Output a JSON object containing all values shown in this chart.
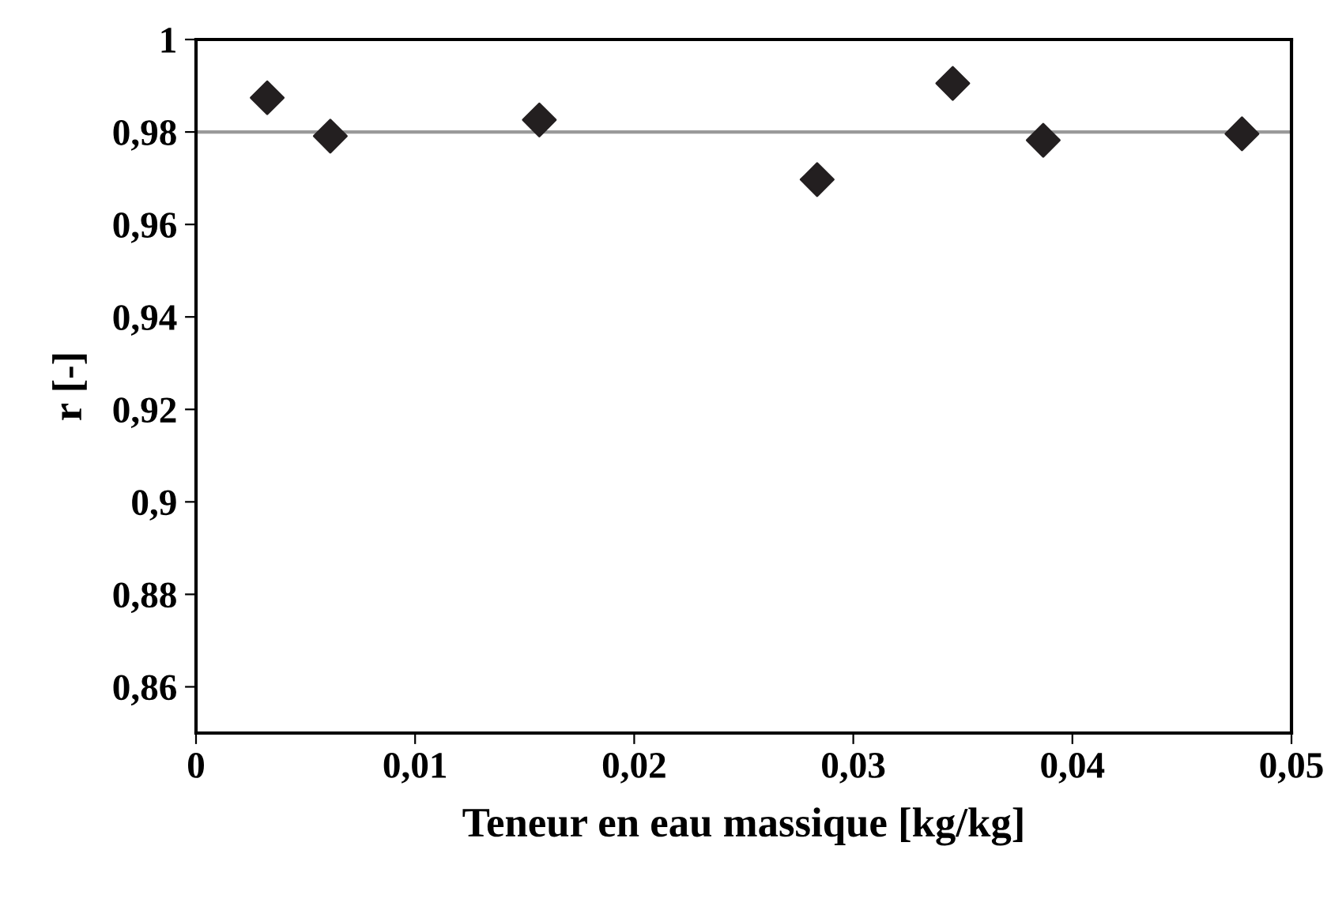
{
  "chart_data": {
    "type": "scatter",
    "xlabel": "Teneur en eau massique [kg/kg]",
    "ylabel": "r [-]",
    "x": [
      0.00325,
      0.00613,
      0.01567,
      0.02835,
      0.03454,
      0.03867,
      0.04774
    ],
    "values": [
      0.9874,
      0.9791,
      0.9826,
      0.9697,
      0.9905,
      0.9782,
      0.9796
    ],
    "color": "#231f20",
    "marker": "diamond",
    "xlim": [
      0,
      0.05
    ],
    "ylim": [
      0.85,
      1
    ],
    "xticks": [
      0,
      {
        "value": 0.01,
        "label": "0,01"
      },
      {
        "value": 0.02,
        "label": "0,02"
      },
      {
        "value": 0.03,
        "label": "0,03"
      },
      {
        "value": 0.04,
        "label": "0,04"
      },
      {
        "value": 0.05,
        "label": "0,05"
      }
    ],
    "yticks": [
      {
        "value": 0.86,
        "label": "0,86"
      },
      {
        "value": 0.88,
        "label": "0,88"
      },
      {
        "value": 0.9,
        "label": "0,9"
      },
      {
        "value": 0.92,
        "label": "0,92"
      },
      {
        "value": 0.94,
        "label": "0,94"
      },
      {
        "value": 0.96,
        "label": "0,96"
      },
      {
        "value": 0.98,
        "label": "0,98"
      },
      1
    ],
    "ref_lines": [
      {
        "axis": "y",
        "value": 0.98,
        "color": "#999999"
      }
    ],
    "grid": false,
    "legend": false
  }
}
